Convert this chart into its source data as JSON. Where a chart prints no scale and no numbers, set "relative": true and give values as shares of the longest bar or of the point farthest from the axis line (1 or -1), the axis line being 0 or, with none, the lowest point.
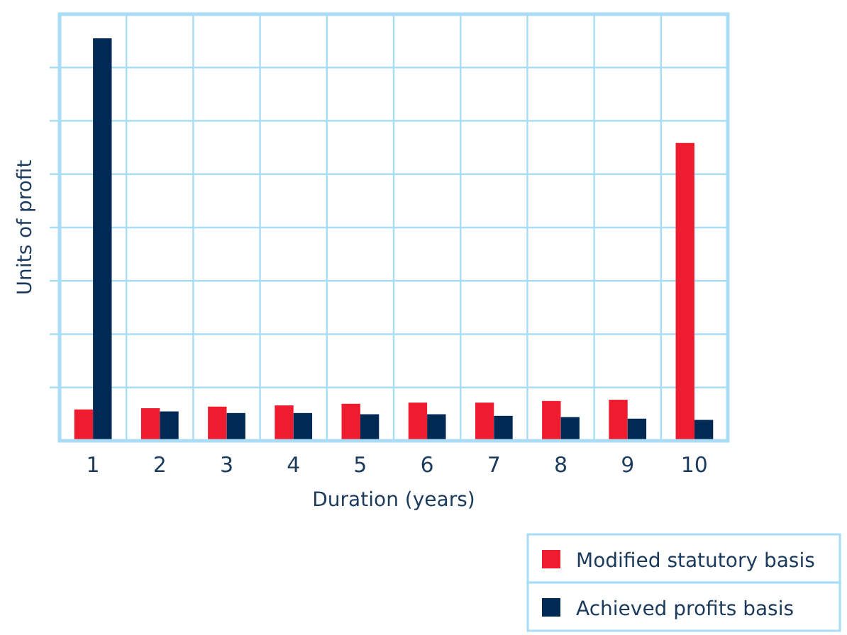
{
  "chart_data": {
    "type": "bar",
    "relative": true,
    "xlabel": "Duration (years)",
    "ylabel": "Units of profit",
    "categories": [
      "1",
      "2",
      "3",
      "4",
      "5",
      "6",
      "7",
      "8",
      "9",
      "10"
    ],
    "series": [
      {
        "name": "Modified statutory basis",
        "color": "#ee1c2e",
        "values": [
          0.078,
          0.081,
          0.085,
          0.088,
          0.092,
          0.095,
          0.095,
          0.099,
          0.102,
          0.74
        ]
      },
      {
        "name": "Achieved profits basis",
        "color": "#002a54",
        "values": [
          1,
          0.073,
          0.069,
          0.069,
          0.066,
          0.066,
          0.062,
          0.059,
          0.055,
          0.052
        ]
      }
    ],
    "grid": true,
    "legend": "bottom right"
  }
}
